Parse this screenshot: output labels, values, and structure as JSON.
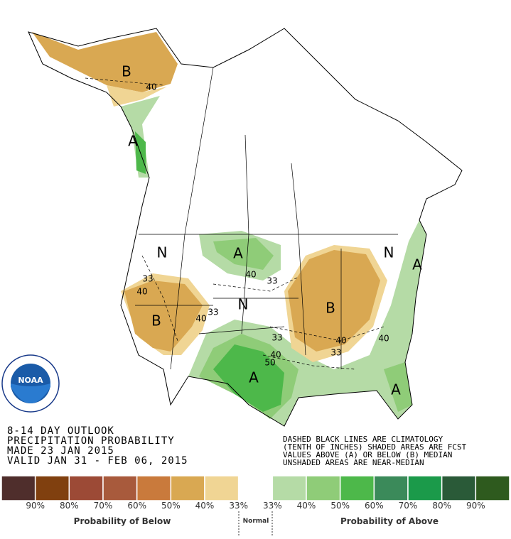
{
  "logo": "NOAA",
  "map_labels": [
    "B",
    "40",
    "A",
    "N",
    "33",
    "40",
    "B",
    "40",
    "33",
    "A",
    "40",
    "33",
    "N",
    "B",
    "33",
    "40",
    "50",
    "40",
    "33",
    "40",
    "A",
    "N",
    "A",
    "A"
  ],
  "title_block": {
    "lines": [
      "8-14 DAY OUTLOOK",
      "PRECIPITATION PROBABILITY",
      "MADE  23 JAN 2015",
      "VALID  JAN 31 - FEB 06, 2015"
    ]
  },
  "notes": {
    "lines": [
      "DASHED BLACK LINES ARE CLIMATOLOGY",
      "(TENTH OF INCHES) SHADED AREAS ARE FCST",
      "VALUES ABOVE (A) OR BELOW (B) MEDIAN",
      "UNSHADED AREAS ARE NEAR-MEDIAN"
    ]
  },
  "legend": {
    "colors": [
      "#4f2e2c",
      "#80400f",
      "#9c4a36",
      "#a85a3c",
      "#c97a3c",
      "#d9a852",
      "#f0d594",
      "#ffffff",
      "#b5dba6",
      "#8fcc78",
      "#4db84a",
      "#3b8a5a",
      "#1b9a4a",
      "#2a5a38",
      "#2e5a1e"
    ],
    "labels": [
      "90%",
      "80%",
      "70%",
      "60%",
      "50%",
      "40%",
      "33%",
      "33%",
      "40%",
      "50%",
      "60%",
      "70%",
      "80%",
      "90%"
    ],
    "below": "Probability of Below",
    "normal": "Normal",
    "above": "Probability of Above"
  }
}
